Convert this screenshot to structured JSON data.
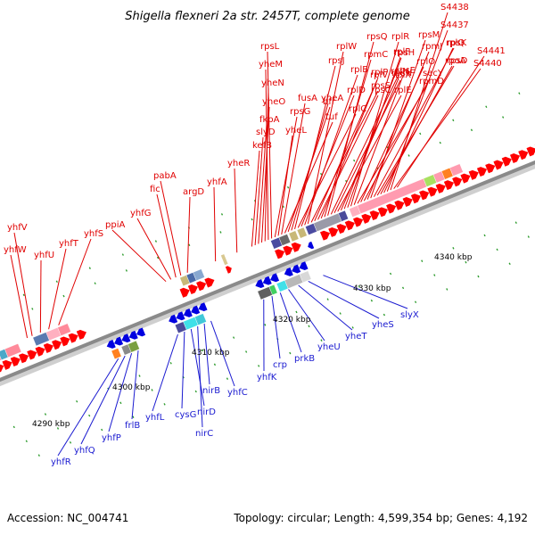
{
  "title": "Shigella flexneri 2a str. 2457T, complete genome",
  "footer": {
    "accession": "Accession: NC_004741",
    "summary": "Topology: circular; Length: 4,599,354 bp; Genes: 4,192"
  },
  "colors": {
    "forward_label": "#e00000",
    "reverse_label": "#1a1ad0",
    "forward_feature": "#ff0000",
    "reverse_feature": "#0000e0",
    "backbone": "#8a8a8a",
    "tick": "#2a9a2a"
  },
  "scale_labels": [
    {
      "text": "4290 kbp",
      "kbp": 4290
    },
    {
      "text": "4300 kbp",
      "kbp": 4300
    },
    {
      "text": "4310 kbp",
      "kbp": 4310
    },
    {
      "text": "4320 kbp",
      "kbp": 4320
    },
    {
      "text": "4330 kbp",
      "kbp": 4330
    },
    {
      "text": "4340 kbp",
      "kbp": 4340
    }
  ],
  "forward_genes": [
    "yhfW",
    "yhfV",
    "yhfU",
    "yhfT",
    "yhfS",
    "ppiA",
    "yhfG",
    "fic",
    "pabA",
    "argD",
    "yhfA",
    "yheR",
    "kefB",
    "slyD",
    "fkpA",
    "yheO",
    "yheN",
    "yheM",
    "rpsL",
    "rpsG",
    "yheL",
    "fusA",
    "tuf",
    "bfr",
    "yheA",
    "rpsJ",
    "rplC",
    "rplD",
    "rplB",
    "rplW",
    "rpsS",
    "rplV",
    "rpsC",
    "rplP",
    "rpmC",
    "rpsQ",
    "rplN",
    "rplX",
    "rplE",
    "rpsN",
    "rpsH",
    "rplF",
    "rplR",
    "rpsE",
    "rpmD",
    "rplO",
    "secY",
    "rpmJ",
    "rpsM",
    "rpsK",
    "rpsD",
    "rpoA",
    "rplQ",
    "S4437",
    "S4438",
    "S4440",
    "S4441"
  ],
  "reverse_genes": [
    "yhfR",
    "yhfQ",
    "yhfP",
    "frlB",
    "yhfL",
    "cysG",
    "nirD",
    "nirC",
    "nirB",
    "yhfC",
    "yhfK",
    "crp",
    "prkB",
    "yheU",
    "yheT",
    "yheS",
    "slyX"
  ]
}
